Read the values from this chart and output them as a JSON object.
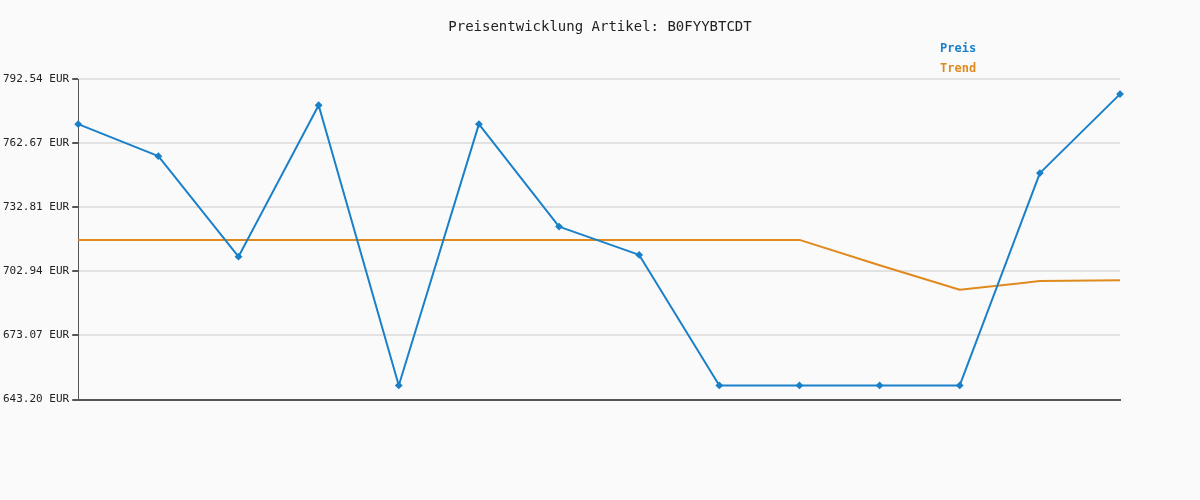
{
  "chart_data": {
    "type": "line",
    "title": "Preisentwicklung Artikel: B0FYYBTCDT",
    "categories": [
      null,
      null,
      null,
      null,
      null,
      null,
      null,
      null,
      null,
      null,
      null,
      null,
      null,
      null
    ],
    "series": [
      {
        "name": "Preis",
        "color": "#1a80c8",
        "marker": "diamond",
        "values": [
          771.5,
          756.6,
          709.8,
          780.3,
          649.8,
          771.5,
          723.8,
          710.6,
          649.8,
          649.8,
          649.8,
          649.8,
          748.7,
          785.5
        ]
      },
      {
        "name": "Trend",
        "color": "#e08a1e",
        "marker": "none",
        "values": [
          717.6,
          717.6,
          717.6,
          717.6,
          717.6,
          717.6,
          717.6,
          717.6,
          717.6,
          717.6,
          705.8,
          694.4,
          698.4,
          698.8
        ]
      }
    ],
    "ylim": [
      643.2,
      792.54
    ],
    "yticks": [
      {
        "value": 643.2,
        "label": "643.20 EUR"
      },
      {
        "value": 673.07,
        "label": "673.07 EUR"
      },
      {
        "value": 702.94,
        "label": "702.94 EUR"
      },
      {
        "value": 732.81,
        "label": "732.81 EUR"
      },
      {
        "value": 762.67,
        "label": "762.67 EUR"
      },
      {
        "value": 792.54,
        "label": "792.54 EUR"
      }
    ],
    "grid": "y",
    "legend": "top right",
    "line_style": "solid"
  }
}
